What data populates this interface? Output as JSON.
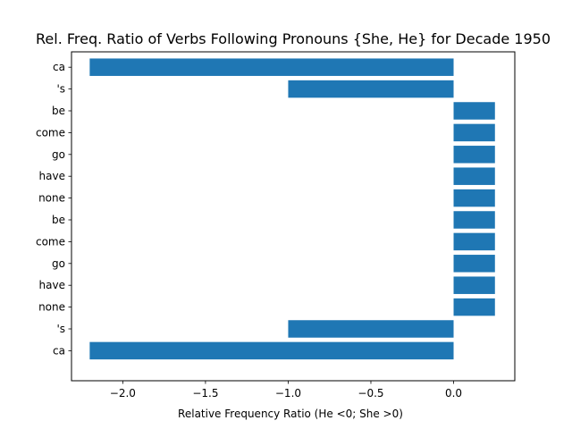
{
  "chart_data": {
    "type": "bar",
    "orientation": "horizontal",
    "title": "Rel. Freq. Ratio of Verbs Following Pronouns {She, He} for Decade 1950",
    "xlabel": "Relative Frequency Ratio (He <0; She >0)",
    "ylabel": "",
    "categories": [
      "ca",
      "'s",
      "be",
      "come",
      "go",
      "have",
      "none",
      "be",
      "come",
      "go",
      "have",
      "none",
      "'s",
      "ca"
    ],
    "values": [
      -2.2,
      -1.0,
      0.25,
      0.25,
      0.25,
      0.25,
      0.25,
      0.25,
      0.25,
      0.25,
      0.25,
      0.25,
      -1.0,
      -2.2
    ],
    "xlim": [
      -2.31,
      0.37
    ],
    "xticks": [
      -2.0,
      -1.5,
      -1.0,
      -0.5,
      0.0
    ],
    "xtick_labels": [
      "−2.0",
      "−1.5",
      "−1.0",
      "−0.5",
      "0.0"
    ],
    "grid": false,
    "bar_color": "#1f77b4"
  }
}
